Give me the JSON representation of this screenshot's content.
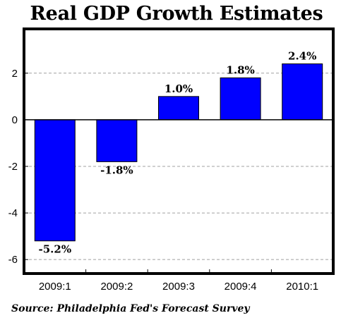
{
  "chart_data": {
    "type": "bar",
    "title": "Real GDP Growth Estimates",
    "source": "Source: Philadelphia Fed's Forecast Survey",
    "categories": [
      "2009:1",
      "2009:2",
      "2009:3",
      "2009:4",
      "2010:1"
    ],
    "values": [
      -5.2,
      -1.8,
      1.0,
      1.8,
      2.4
    ],
    "data_labels": [
      "-5.2%",
      "-1.8%",
      "1.0%",
      "1.8%",
      "2.4%"
    ],
    "ylim": [
      -6.6,
      3.9
    ],
    "yticks": [
      2,
      0,
      -2,
      -4,
      -6
    ],
    "ytick_labels": [
      "2",
      "0",
      "-2",
      "-4",
      "-6"
    ],
    "grid": true,
    "bar_color": "#0000ff",
    "xlabel": "",
    "ylabel": ""
  }
}
